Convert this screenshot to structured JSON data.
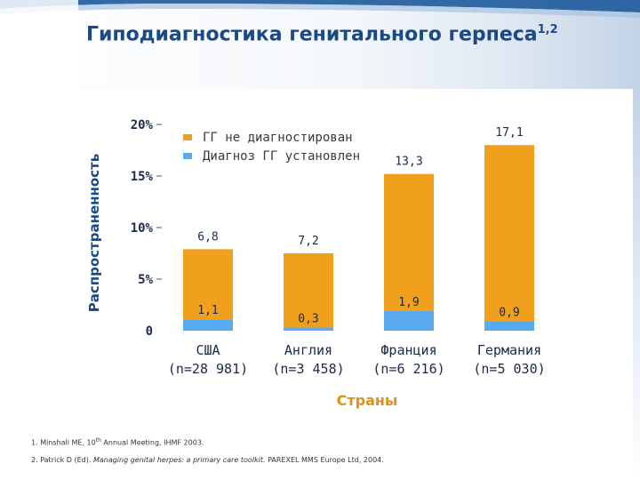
{
  "title": "Гиподиагностика генитального герпеса",
  "title_refs": "1,2",
  "colors": {
    "undiagnosed": "#f0a01c",
    "diagnosed": "#5aaaf0",
    "title": "#1a4a86",
    "x_title": "#e0901a"
  },
  "chart_data": {
    "type": "bar",
    "stacked": true,
    "ylabel": "Распространенность",
    "xlabel": "Страны",
    "ylim": [
      0,
      20
    ],
    "yticks": [
      {
        "value": 0,
        "label": "0"
      },
      {
        "value": 5,
        "label": "5%"
      },
      {
        "value": 10,
        "label": "10%"
      },
      {
        "value": 15,
        "label": "15%"
      },
      {
        "value": 20,
        "label": "20%"
      }
    ],
    "legend_position": "top-left",
    "categories": [
      {
        "name": "США",
        "n": "(n=28 981)"
      },
      {
        "name": "Англия",
        "n": "(n=3 458)"
      },
      {
        "name": "Франция",
        "n": "(n=6 216)"
      },
      {
        "name": "Германия",
        "n": "(n=5 030)"
      }
    ],
    "series": [
      {
        "name": "Диагноз ГГ установлен",
        "color": "#5aaaf0",
        "values": [
          1.1,
          0.3,
          1.9,
          0.9
        ],
        "labels": [
          "1,1",
          "0,3",
          "1,9",
          "0,9"
        ]
      },
      {
        "name": "ГГ не диагностирован",
        "color": "#f0a01c",
        "values": [
          6.8,
          7.2,
          13.3,
          17.1
        ],
        "labels": [
          "6,8",
          "7,2",
          "13,3",
          "17,1"
        ]
      }
    ]
  },
  "footnotes": [
    {
      "num": "1.",
      "text_before": "Minshall ME, 10",
      "sup": "th",
      "text_after": " Annual Meeting, IHMF 2003.",
      "italic": ""
    },
    {
      "num": "2.",
      "text_before": "Patrick D (Ed). ",
      "sup": "",
      "text_after": " PAREXEL MMS Europe Ltd, 2004.",
      "italic": "Managing genital herpes: a primary care toolkit."
    }
  ]
}
